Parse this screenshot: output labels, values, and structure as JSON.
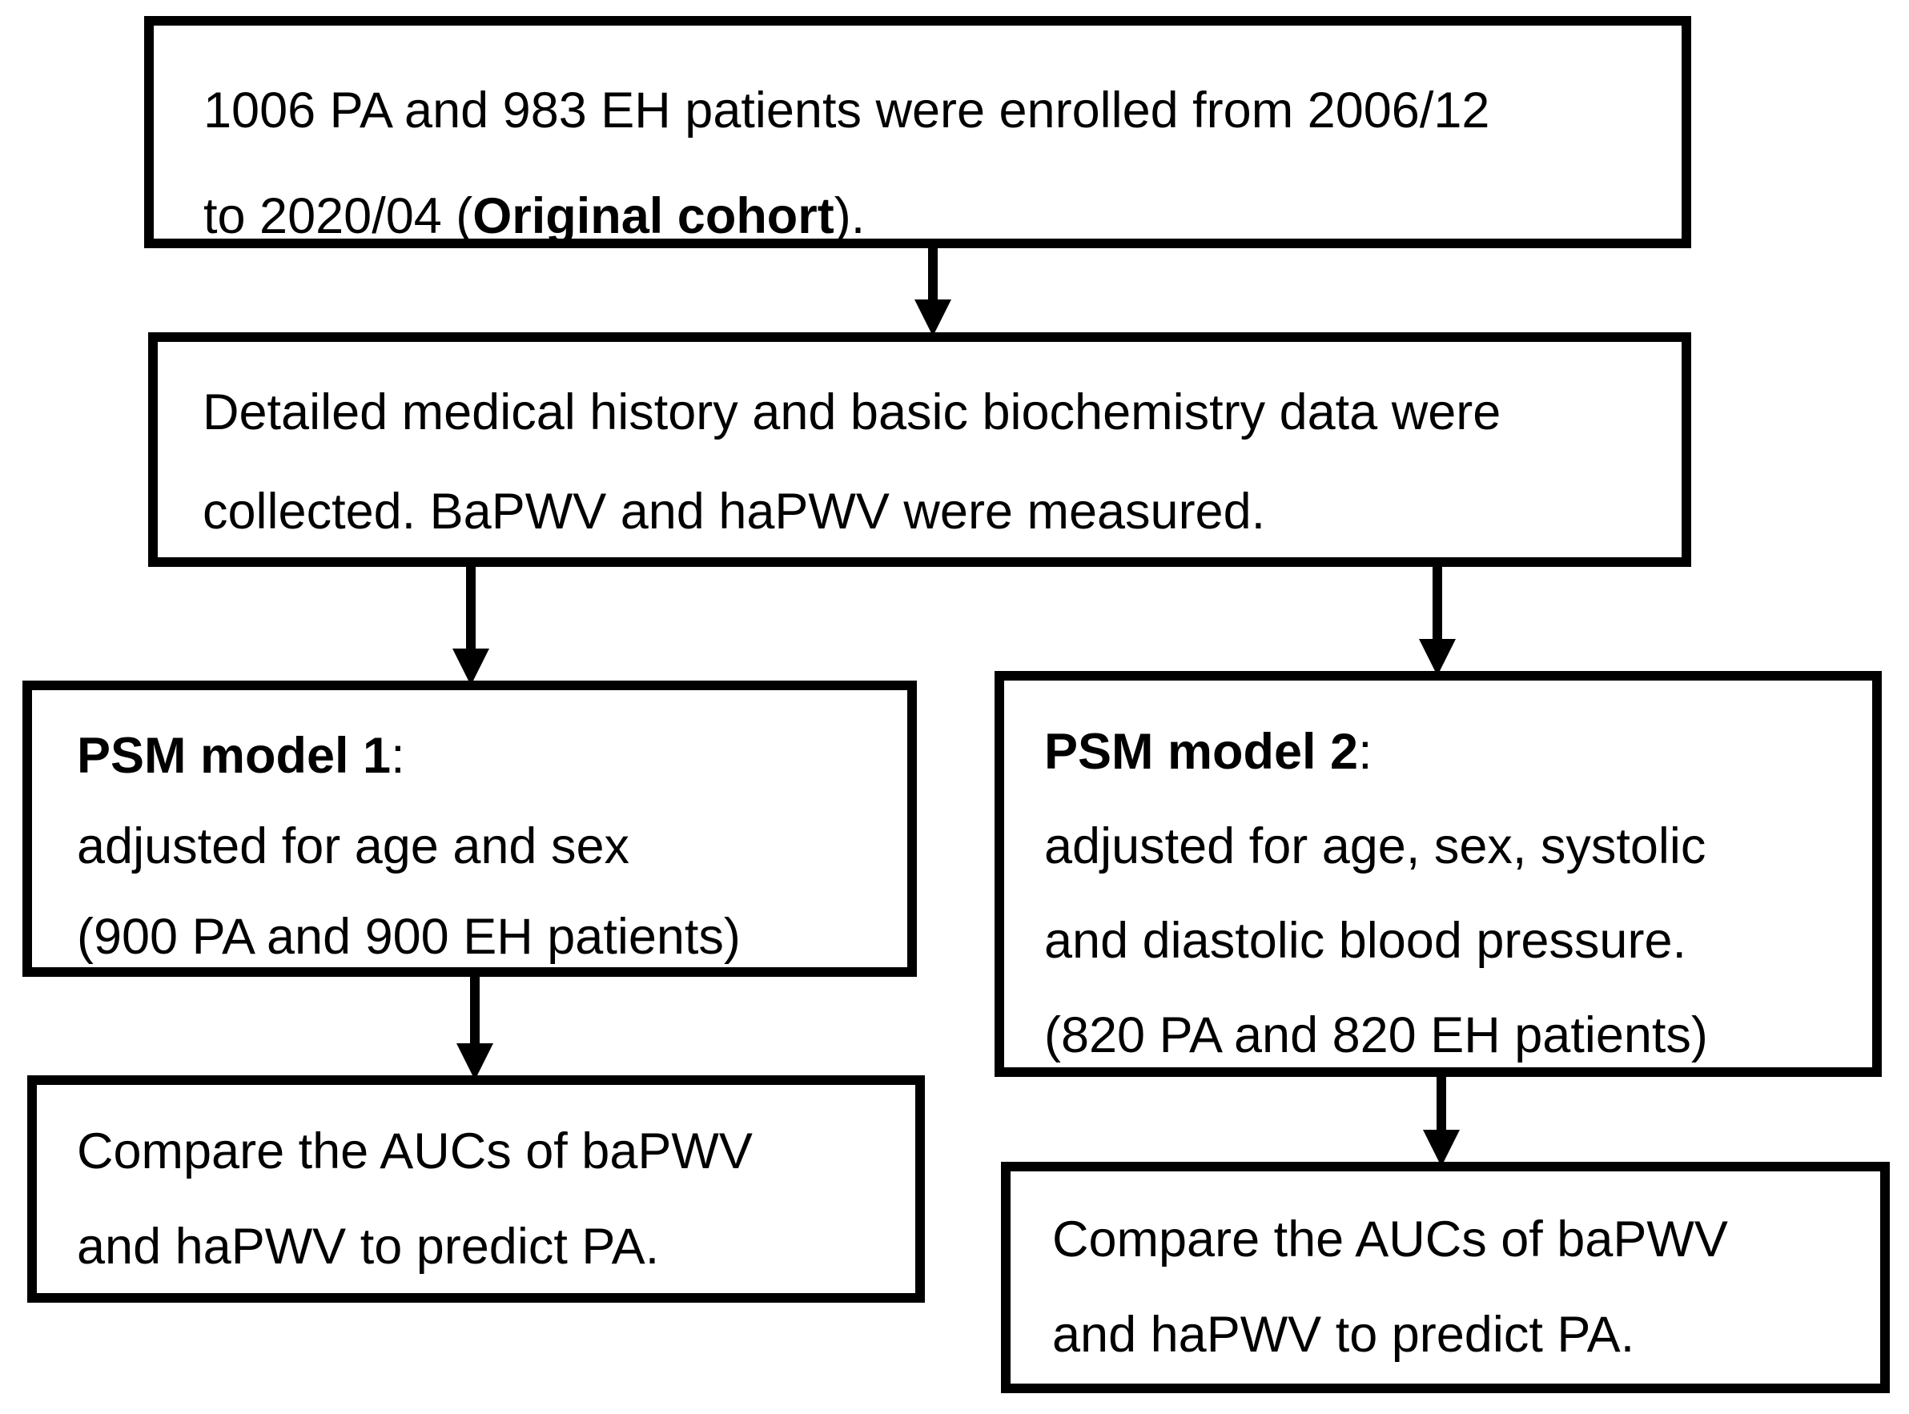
{
  "diagram": {
    "colors": {
      "background": "#ffffff",
      "box_border": "#000000",
      "text": "#000000",
      "arrow": "#000000"
    },
    "box1": {
      "line1": "1006 PA and 983 EH patients were enrolled from 2006/12",
      "line2_pre": "to 2020/04 (",
      "line2_bold": "Original cohort",
      "line2_post": ")."
    },
    "box2": {
      "line1": "Detailed medical history and basic biochemistry data were",
      "line2": "collected. BaPWV and haPWV were measured."
    },
    "box3": {
      "title_bold": "PSM model 1",
      "title_suffix": ":",
      "line2": "adjusted for age and sex",
      "line3": "(900 PA and 900 EH patients)"
    },
    "box4": {
      "title_bold": "PSM model 2",
      "title_suffix": ":",
      "line2": "adjusted for age, sex, systolic",
      "line3": "and diastolic blood pressure.",
      "line4": "(820 PA and 820 EH patients)"
    },
    "box5": {
      "line1": "Compare the AUCs of baPWV",
      "line2": "and haPWV to predict PA."
    },
    "box6": {
      "line1": "Compare the AUCs of baPWV",
      "line2": "and haPWV to predict PA."
    }
  }
}
